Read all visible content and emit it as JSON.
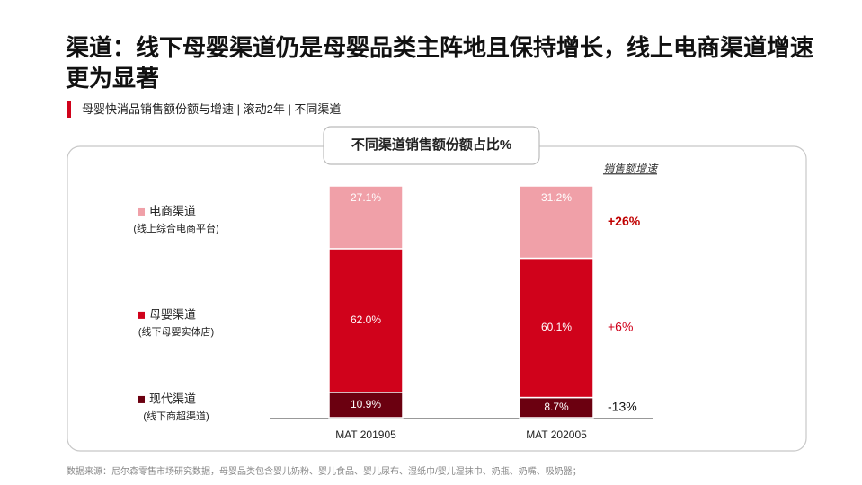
{
  "title": "渠道：线下母婴渠道仍是母婴品类主阵地且保持增长，线上电商渠道增速更为显著",
  "subtitle": "母婴快消品销售额份额与增速 | 滚动2年 | 不同渠道",
  "source": "数据来源：尼尔森零售市场研究数据，母婴品类包含婴儿奶粉、婴儿食品、婴儿尿布、湿纸巾/婴儿湿抹巾、奶瓶、奶嘴、吸奶器；",
  "chart_data": {
    "type": "bar",
    "stacked": true,
    "title": "不同渠道销售额份额占比%",
    "growth_title": "销售额增速",
    "categories": [
      "MAT 201905",
      "MAT 202005"
    ],
    "ylim": [
      0,
      100
    ],
    "series": [
      {
        "name": "现代渠道",
        "note": "(线下商超渠道)",
        "color": "#6b0010",
        "values": [
          10.9,
          8.7
        ],
        "value_labels": [
          "10.9%",
          "8.7%"
        ],
        "growth": "-13%",
        "growth_color": "#111111",
        "growth_bold": false
      },
      {
        "name": "母婴渠道",
        "note": "(线下母婴实体店)",
        "color": "#d0021b",
        "values": [
          62,
          60.1
        ],
        "value_labels": [
          "62.0%",
          "60.1%"
        ],
        "growth": "+6%",
        "growth_color": "#d0021b",
        "growth_bold": false
      },
      {
        "name": "电商渠道",
        "note": "(线上综合电商平台)",
        "color": "#f0a0a8",
        "values": [
          27.1,
          31.2
        ],
        "value_labels": [
          "27.1%",
          "31.2%"
        ],
        "growth": "+26%",
        "growth_color": "#c00000",
        "growth_bold": true
      }
    ]
  }
}
